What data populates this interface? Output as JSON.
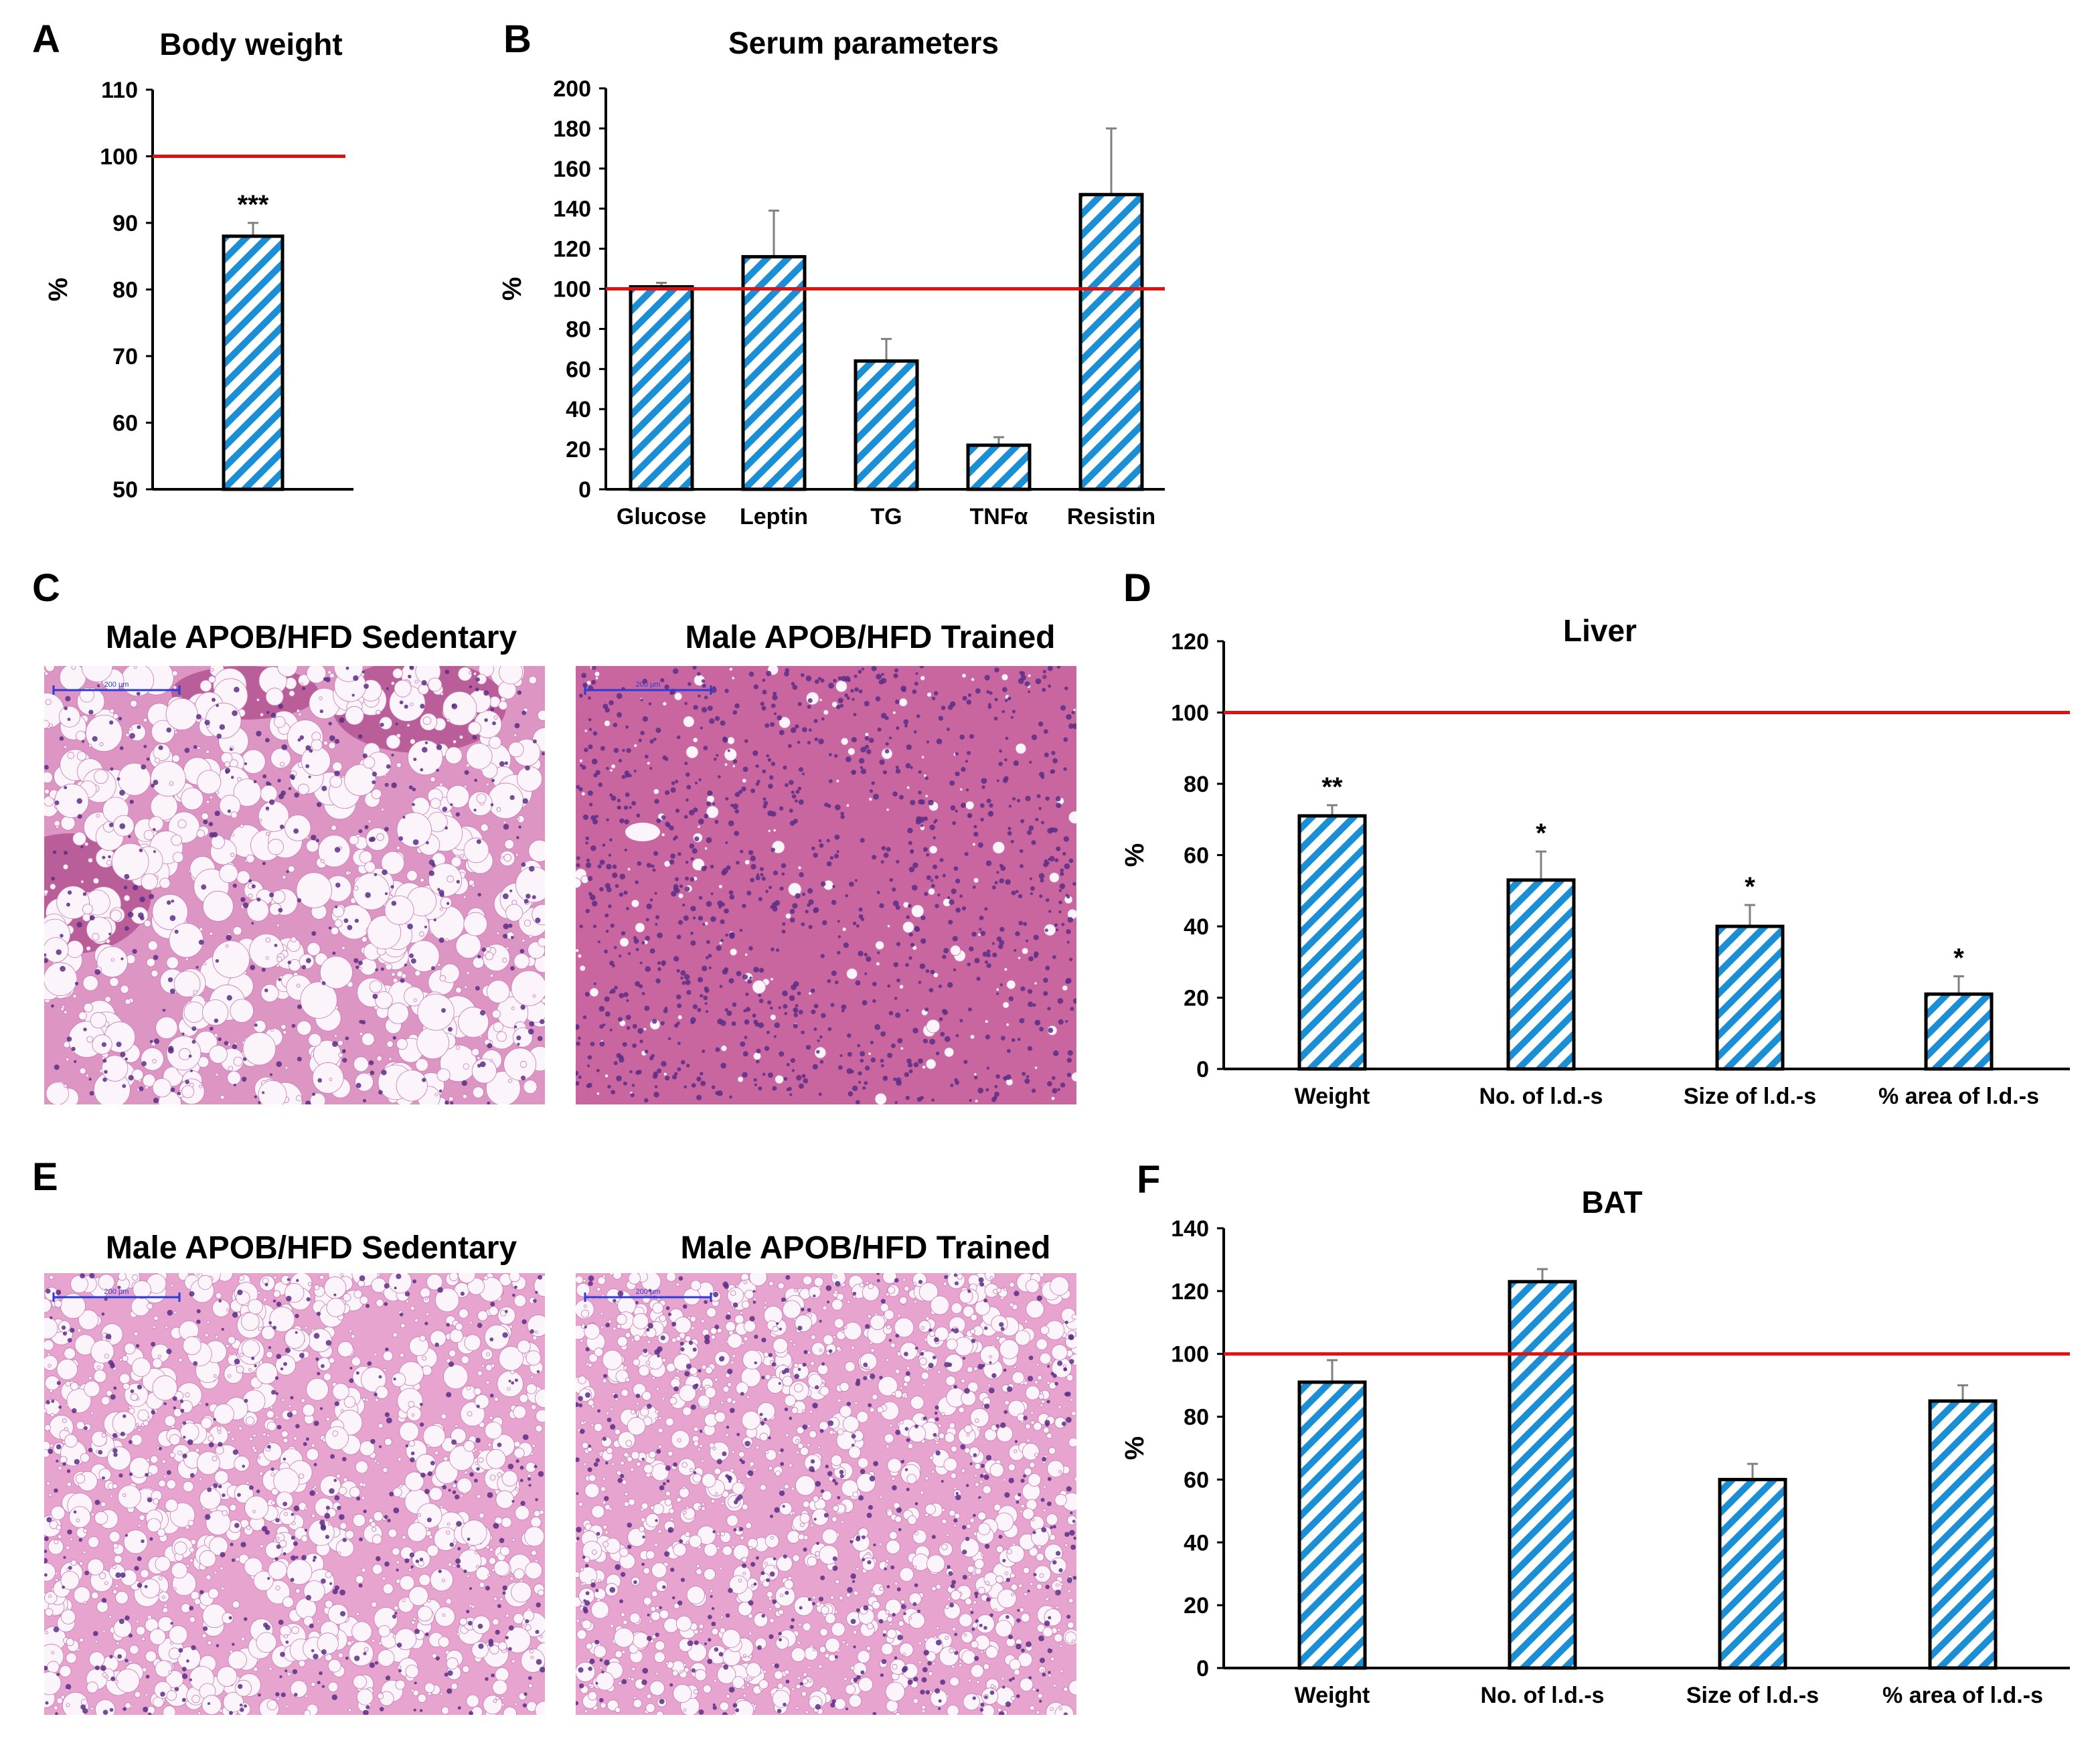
{
  "colors": {
    "bar_stripe": "#1b8fd6",
    "bar_fill": "#ffffff",
    "bar_edge": "#000000",
    "reference_line": "#e01010",
    "error_bar": "#808080",
    "tissue_pink": "#e6a4cf",
    "tissue_dark": "#b0508f",
    "tissue_nuclei": "#5a2e86",
    "scale_bar": "#2b3bd6"
  },
  "panels": {
    "A": "A",
    "B": "B",
    "C": "C",
    "D": "D",
    "E": "E",
    "F": "F"
  },
  "images": {
    "c_left": {
      "title": "Male APOB/HFD Sedentary",
      "scale": "200 µm",
      "pattern": "steatosis-heavy",
      "icon": "micrograph-icon"
    },
    "c_right": {
      "title": "Male APOB/HFD Trained",
      "scale": "200 µm",
      "pattern": "dense-tissue",
      "icon": "micrograph-icon"
    },
    "e_left": {
      "title": "Male APOB/HFD Sedentary",
      "scale": "200 µm",
      "pattern": "brown-fat-large",
      "icon": "micrograph-icon"
    },
    "e_right": {
      "title": "Male APOB/HFD Trained",
      "scale": "200 µm",
      "pattern": "brown-fat-small",
      "icon": "micrograph-icon"
    }
  },
  "chart_data": [
    {
      "id": "A",
      "type": "bar",
      "title": "Body weight",
      "ylabel": "%",
      "xlabel": "",
      "ylim": [
        50,
        110
      ],
      "yticks": [
        50,
        60,
        70,
        80,
        90,
        100,
        110
      ],
      "reference_line": 100,
      "categories": [
        ""
      ],
      "values": [
        88
      ],
      "errors": [
        2
      ],
      "significance": [
        "***"
      ]
    },
    {
      "id": "B",
      "type": "bar",
      "title": "Serum parameters",
      "ylabel": "%",
      "xlabel": "",
      "ylim": [
        0,
        200
      ],
      "yticks": [
        0,
        20,
        40,
        60,
        80,
        100,
        120,
        140,
        160,
        180,
        200
      ],
      "reference_line": 100,
      "categories": [
        "Glucose",
        "Leptin",
        "TG",
        "TNFα",
        "Resistin"
      ],
      "values": [
        101,
        116,
        64,
        22,
        147
      ],
      "errors": [
        2,
        23,
        11,
        4,
        33
      ],
      "significance": [
        "",
        "",
        "",
        "",
        ""
      ]
    },
    {
      "id": "D",
      "type": "bar",
      "title": "Liver",
      "ylabel": "%",
      "xlabel": "",
      "ylim": [
        0,
        120
      ],
      "yticks": [
        0,
        20,
        40,
        60,
        80,
        100,
        120
      ],
      "reference_line": 100,
      "categories": [
        "Weight",
        "No. of l.d.-s",
        "Size of l.d.-s",
        "% area of l.d.-s"
      ],
      "values": [
        71,
        53,
        40,
        21
      ],
      "errors": [
        3,
        8,
        6,
        5
      ],
      "significance": [
        "**",
        "*",
        "*",
        "*"
      ]
    },
    {
      "id": "F",
      "type": "bar",
      "title": "BAT",
      "ylabel": "%",
      "xlabel": "",
      "ylim": [
        0,
        140
      ],
      "yticks": [
        0,
        20,
        40,
        60,
        80,
        100,
        120,
        140
      ],
      "reference_line": 100,
      "categories": [
        "Weight",
        "No. of l.d.-s",
        "Size of l.d.-s",
        "% area of l.d.-s"
      ],
      "values": [
        91,
        123,
        60,
        85
      ],
      "errors": [
        7,
        4,
        5,
        5
      ],
      "significance": [
        "",
        "",
        "",
        ""
      ]
    }
  ]
}
